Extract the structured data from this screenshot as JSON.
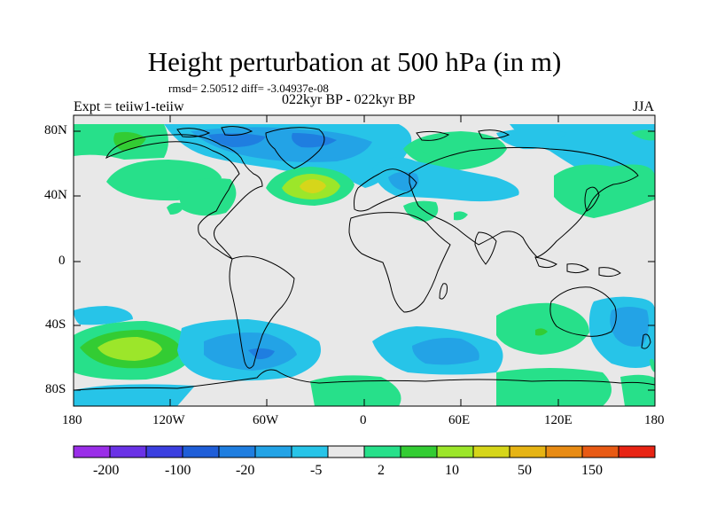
{
  "header": {
    "title": "Height perturbation at 500 hPa (in m)",
    "stats": "rmsd= 2.50512 diff= -3.04937e-08",
    "experiment": "Expt = teiiw1-teiiw",
    "period": "022kyr BP - 022kyr BP",
    "season": "JJA"
  },
  "axes": {
    "lat_ticks": [
      "80N",
      "40N",
      "0",
      "40S",
      "80S"
    ],
    "lon_ticks": [
      "180",
      "120W",
      "60W",
      "0",
      "60E",
      "120E",
      "180"
    ]
  },
  "colorbar": {
    "colors": [
      "#9a2ee8",
      "#6a32e6",
      "#3b3fe0",
      "#1f5ed8",
      "#1f7ee0",
      "#23a3e6",
      "#27c4e8",
      "#e8e8e8",
      "#27e08a",
      "#33cc33",
      "#9ce62a",
      "#d6d61a",
      "#e6b414",
      "#e88b14",
      "#e85a14",
      "#e82414"
    ],
    "labels": [
      "-200",
      "-100",
      "-20",
      "-5",
      "2",
      "10",
      "50",
      "150"
    ],
    "neutral_color": "#e8e8e8"
  },
  "map": {
    "background_color": "#e8e8e8",
    "land_outline_color": "#000000"
  }
}
